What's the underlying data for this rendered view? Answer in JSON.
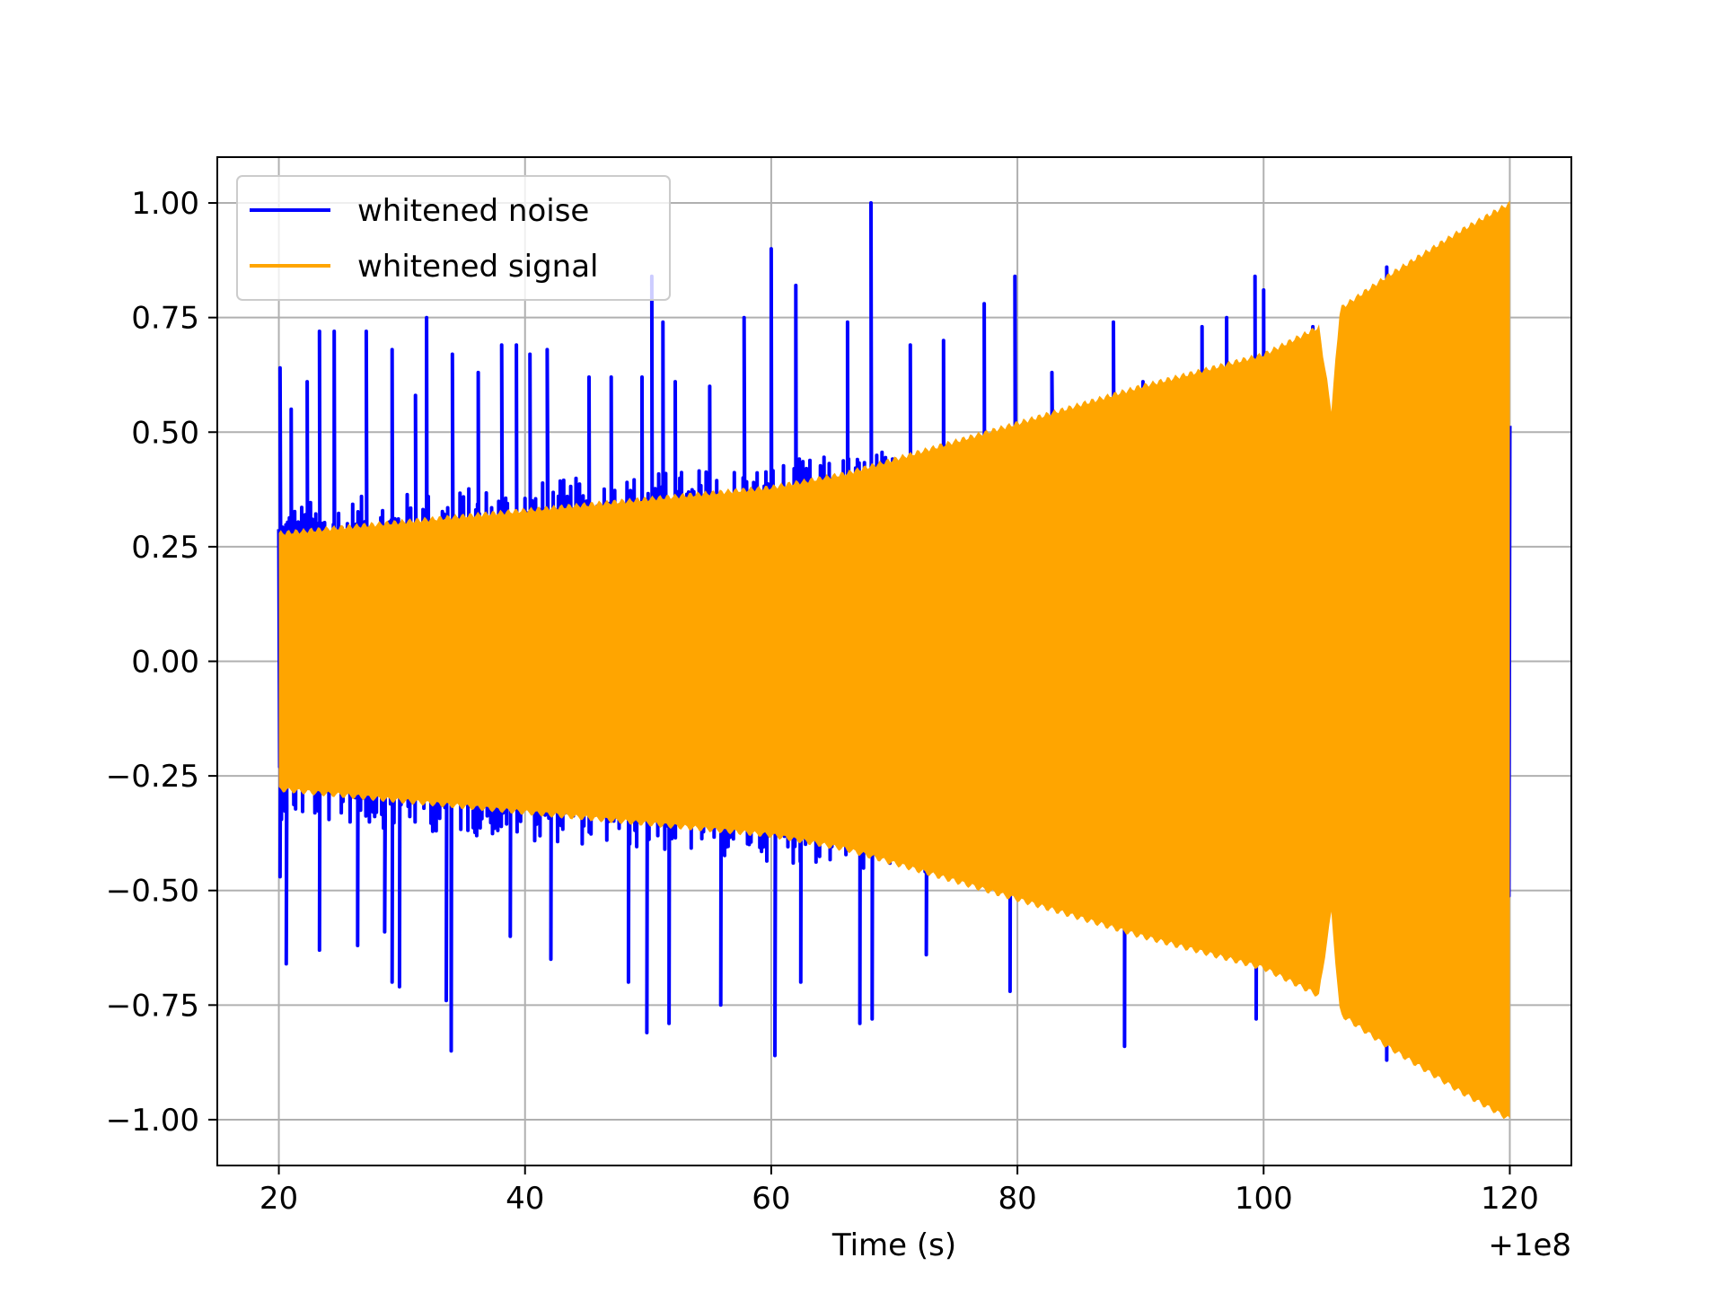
{
  "chart_data": {
    "type": "line",
    "title": "",
    "xlabel": "Time (s)",
    "ylabel": "",
    "x_offset_label": "+1e8",
    "xlim": [
      15,
      125
    ],
    "ylim": [
      -1.1,
      1.1
    ],
    "x_ticks": [
      20,
      40,
      60,
      80,
      100,
      120
    ],
    "x_tick_labels": [
      "20",
      "40",
      "60",
      "80",
      "100",
      "120"
    ],
    "y_ticks": [
      1.0,
      0.75,
      0.5,
      0.25,
      0.0,
      -0.25,
      -0.5,
      -0.75,
      -1.0
    ],
    "y_tick_labels": [
      "1.00",
      "0.75",
      "0.50",
      "0.25",
      "0.00",
      "−0.25",
      "−0.50",
      "−0.75",
      "−1.00"
    ],
    "grid": true,
    "legend_position": "top-left",
    "series": [
      {
        "name": "whitened noise",
        "color": "#0000ff",
        "x_range": [
          20,
          120
        ],
        "envelope_upper": [
          [
            20,
            0.3
          ],
          [
            40,
            0.34
          ],
          [
            60,
            0.38
          ],
          [
            80,
            0.43
          ],
          [
            100,
            0.47
          ],
          [
            120,
            0.5
          ]
        ],
        "envelope_lower": [
          [
            20,
            -0.3
          ],
          [
            40,
            -0.34
          ],
          [
            60,
            -0.38
          ],
          [
            80,
            -0.43
          ],
          [
            100,
            -0.47
          ],
          [
            120,
            -0.5
          ]
        ],
        "spikes": [
          [
            20.1,
            0.64
          ],
          [
            21.0,
            0.55
          ],
          [
            22.3,
            0.61
          ],
          [
            23.3,
            0.72
          ],
          [
            24.5,
            0.72
          ],
          [
            27.1,
            0.72
          ],
          [
            29.2,
            0.68
          ],
          [
            31.1,
            0.58
          ],
          [
            32.0,
            0.75
          ],
          [
            34.1,
            0.67
          ],
          [
            36.2,
            0.63
          ],
          [
            38.1,
            0.69
          ],
          [
            39.3,
            0.69
          ],
          [
            40.4,
            0.67
          ],
          [
            41.8,
            0.68
          ],
          [
            45.2,
            0.62
          ],
          [
            47.0,
            0.62
          ],
          [
            49.5,
            0.62
          ],
          [
            50.3,
            0.84
          ],
          [
            51.2,
            0.74
          ],
          [
            52.2,
            0.61
          ],
          [
            55.0,
            0.6
          ],
          [
            57.8,
            0.75
          ],
          [
            60.0,
            0.9
          ],
          [
            62.0,
            0.82
          ],
          [
            66.2,
            0.74
          ],
          [
            68.1,
            1.0
          ],
          [
            71.3,
            0.69
          ],
          [
            74.0,
            0.7
          ],
          [
            77.3,
            0.78
          ],
          [
            79.8,
            0.84
          ],
          [
            82.8,
            0.63
          ],
          [
            87.8,
            0.74
          ],
          [
            90.2,
            0.61
          ],
          [
            95.0,
            0.73
          ],
          [
            97.0,
            0.75
          ],
          [
            99.3,
            0.84
          ],
          [
            100.0,
            0.81
          ],
          [
            104.0,
            0.73
          ],
          [
            110.0,
            0.86
          ],
          [
            20.1,
            -0.47
          ],
          [
            20.6,
            -0.66
          ],
          [
            23.3,
            -0.63
          ],
          [
            26.4,
            -0.62
          ],
          [
            28.6,
            -0.59
          ],
          [
            29.2,
            -0.7
          ],
          [
            29.8,
            -0.71
          ],
          [
            33.6,
            -0.74
          ],
          [
            34.0,
            -0.85
          ],
          [
            38.8,
            -0.6
          ],
          [
            42.1,
            -0.65
          ],
          [
            48.4,
            -0.7
          ],
          [
            49.9,
            -0.81
          ],
          [
            51.7,
            -0.79
          ],
          [
            55.9,
            -0.75
          ],
          [
            60.3,
            -0.86
          ],
          [
            62.4,
            -0.7
          ],
          [
            67.2,
            -0.79
          ],
          [
            68.2,
            -0.78
          ],
          [
            72.6,
            -0.64
          ],
          [
            79.4,
            -0.72
          ],
          [
            88.7,
            -0.84
          ],
          [
            99.4,
            -0.78
          ],
          [
            110.0,
            -0.87
          ]
        ]
      },
      {
        "name": "whitened signal",
        "color": "#ffa500",
        "x_range": [
          20,
          120
        ],
        "envelope_upper": [
          [
            20,
            0.28
          ],
          [
            40,
            0.33
          ],
          [
            60,
            0.38
          ],
          [
            66,
            0.41
          ],
          [
            80,
            0.52
          ],
          [
            90,
            0.6
          ],
          [
            100,
            0.67
          ],
          [
            104.5,
            0.73
          ],
          [
            105.5,
            0.55
          ],
          [
            106.2,
            0.77
          ],
          [
            110,
            0.84
          ],
          [
            116,
            0.94
          ],
          [
            120,
            1.0
          ]
        ],
        "envelope_lower": [
          [
            20,
            -0.28
          ],
          [
            40,
            -0.33
          ],
          [
            60,
            -0.38
          ],
          [
            66,
            -0.41
          ],
          [
            80,
            -0.52
          ],
          [
            90,
            -0.6
          ],
          [
            100,
            -0.67
          ],
          [
            104.5,
            -0.73
          ],
          [
            105.5,
            -0.55
          ],
          [
            106.2,
            -0.77
          ],
          [
            110,
            -0.84
          ],
          [
            116,
            -0.94
          ],
          [
            120,
            -1.0
          ]
        ]
      }
    ]
  }
}
